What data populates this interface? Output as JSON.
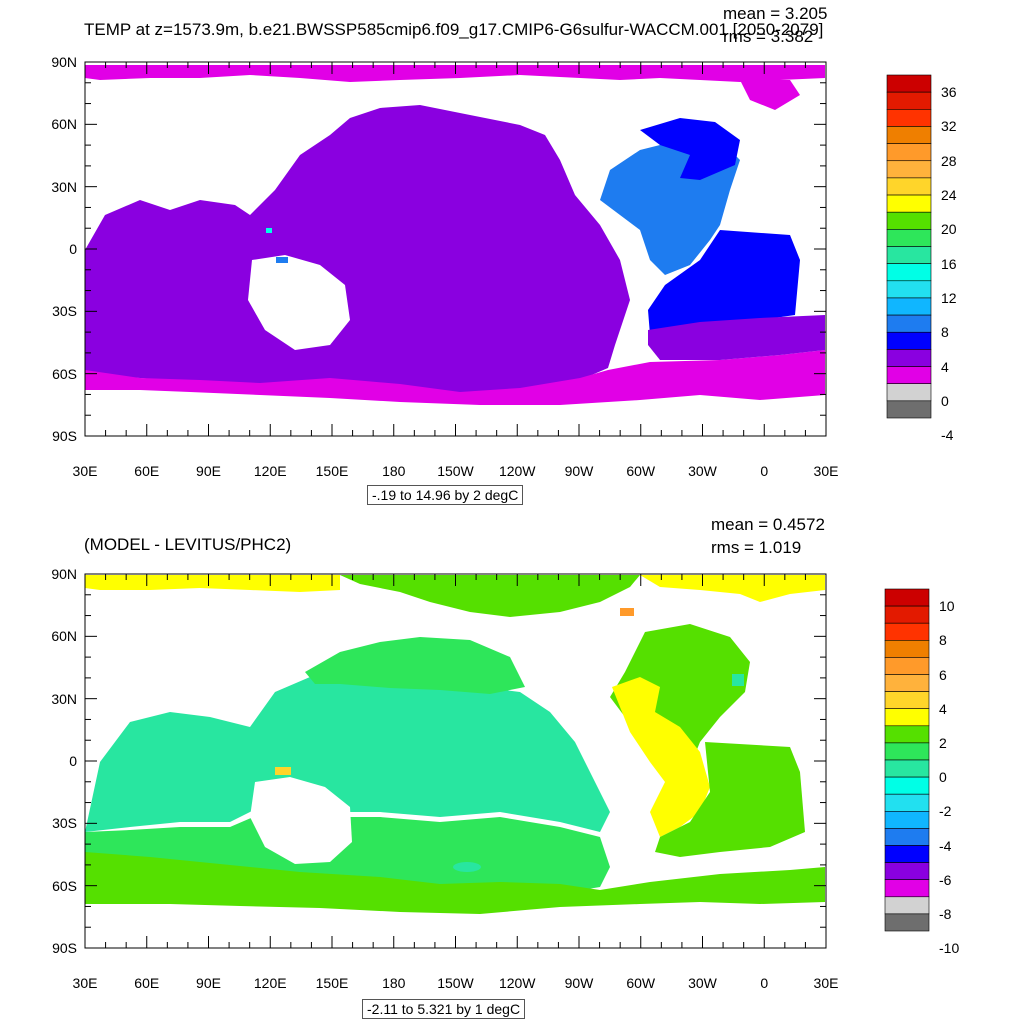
{
  "top": {
    "title": "TEMP at z=1573.9m, b.e21.BWSSP585cmip6.f09_g17.CMIP6-G6sulfur-WACCM.001 [2050-2079]",
    "mean": "mean = 3.205",
    "rms": "rms = 3.382",
    "range": "-.19 to 14.96 by 2 degC",
    "y_labels": [
      "90N",
      "60N",
      "30N",
      "0",
      "30S",
      "60S",
      "90S"
    ],
    "x_labels": [
      "30E",
      "60E",
      "90E",
      "120E",
      "150E",
      "180",
      "150W",
      "120W",
      "90W",
      "60W",
      "30W",
      "0",
      "30E"
    ],
    "colorbar": {
      "labels": [
        "36",
        "32",
        "28",
        "24",
        "20",
        "16",
        "12",
        "8",
        "4",
        "0",
        "-4"
      ],
      "colors": [
        "#cc0000",
        "#e31a00",
        "#ff3300",
        "#ef7f00",
        "#ff9a2a",
        "#ffb23c",
        "#ffd52a",
        "#ffff00",
        "#55e000",
        "#2ee65a",
        "#28e6a0",
        "#00ffe6",
        "#22e0f0",
        "#10b6ff",
        "#1e7cf0",
        "#0000ff",
        "#8a00e0",
        "#e100e6",
        "#d2d2d2",
        "#6e6e6e"
      ]
    }
  },
  "bottom": {
    "title": "(MODEL - LEVITUS/PHC2)",
    "mean": "mean = 0.4572",
    "rms": "rms = 1.019",
    "range": "-2.11 to 5.321 by 1 degC",
    "y_labels": [
      "90N",
      "60N",
      "30N",
      "0",
      "30S",
      "60S",
      "90S"
    ],
    "x_labels": [
      "30E",
      "60E",
      "90E",
      "120E",
      "150E",
      "180",
      "150W",
      "120W",
      "90W",
      "60W",
      "30W",
      "0",
      "30E"
    ],
    "colorbar": {
      "labels": [
        "10",
        "8",
        "6",
        "4",
        "2",
        "0",
        "-2",
        "-4",
        "-6",
        "-8",
        "-10"
      ],
      "colors": [
        "#cc0000",
        "#e31a00",
        "#ff3300",
        "#ef7f00",
        "#ff9a2a",
        "#ffb23c",
        "#ffd52a",
        "#ffff00",
        "#55e000",
        "#2ee65a",
        "#28e6a0",
        "#00ffe6",
        "#22e0f0",
        "#10b6ff",
        "#1e7cf0",
        "#0000ff",
        "#8a00e0",
        "#e100e6",
        "#d2d2d2",
        "#6e6e6e"
      ]
    }
  },
  "colors": {
    "ocean_top_pacific": "#8a00e0",
    "ocean_top_arctic": "#e100e6",
    "ocean_top_atlantic_n": "#1e7cf0",
    "ocean_top_atlantic_s": "#0000ff",
    "ocean_bot_cyan": "#28e6a0",
    "ocean_bot_green": "#2ee65a",
    "ocean_bot_lime": "#55e000",
    "ocean_bot_yellow": "#ffff00",
    "land": "#ffffff"
  }
}
